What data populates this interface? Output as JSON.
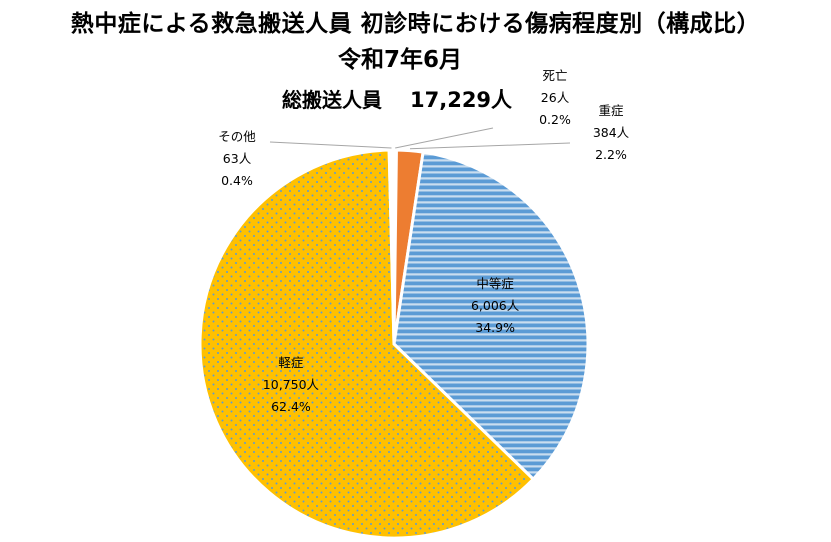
{
  "chart_data": {
    "type": "pie",
    "title": "熱中症による救急搬送人員 初診時における傷病程度別（構成比）",
    "subtitle": "令和7年6月",
    "total_label": "総搬送人員",
    "total_value": "17,229人",
    "start": "top",
    "direction": "clockwise",
    "slices": [
      {
        "name": "死亡",
        "count": "26人",
        "percent": "0.2%",
        "value": 0.2,
        "color": "#2f5597",
        "pattern": "solid"
      },
      {
        "name": "重症",
        "count": "384人",
        "percent": "2.2%",
        "value": 2.2,
        "color": "#ed7d31",
        "pattern": "solid"
      },
      {
        "name": "中等症",
        "count": "6,006人",
        "percent": "34.9%",
        "value": 34.9,
        "color": "#5b9bd5",
        "pattern": "horizontal-stripes"
      },
      {
        "name": "軽症",
        "count": "10,750人",
        "percent": "62.4%",
        "value": 62.4,
        "color": "#ffc000",
        "pattern": "dots"
      },
      {
        "name": "その他",
        "count": "63人",
        "percent": "0.4%",
        "value": 0.4,
        "color": "#ffffff",
        "pattern": "solid"
      }
    ]
  }
}
